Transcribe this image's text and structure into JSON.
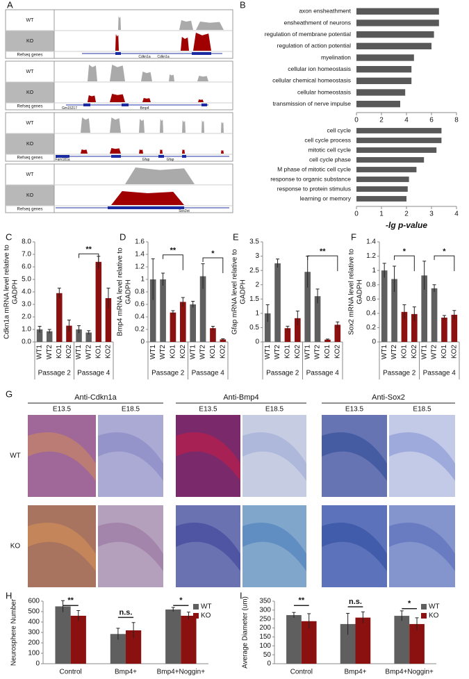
{
  "panel_labels": [
    "A",
    "B",
    "C",
    "D",
    "E",
    "F",
    "G",
    "H",
    "I"
  ],
  "tracks": [
    {
      "rows": [
        "WT",
        "KO",
        "Refseq genes"
      ],
      "genes": [
        "Cdkn1a",
        "Cdkn1a"
      ]
    },
    {
      "rows": [
        "WT",
        "KO",
        "Refseq genes"
      ],
      "genes": [
        "Gm15217",
        "Bmp4"
      ]
    },
    {
      "rows": [
        "WT",
        "KO",
        "Refseq genes"
      ],
      "genes": [
        "Fam181a",
        "Gfap",
        "Gfap"
      ]
    },
    {
      "rows": [
        "WT",
        "KO",
        "Refseq genes"
      ],
      "genes": [
        "Sox2ot"
      ]
    }
  ],
  "histology": {
    "titles": [
      "Anti-Cdkn1a",
      "Anti-Bmp4",
      "Anti-Sox2"
    ],
    "stages": [
      "E13.5",
      "E18.5"
    ],
    "rows": [
      "WT",
      "KO"
    ]
  },
  "chart_data": [
    {
      "type": "barh",
      "color": "#595959",
      "categories": [
        "axon ensheathment",
        "ensheathment of neurons",
        "regulation of membrane potential",
        "regulation of action potential",
        "myelination",
        "cellular ion homeostasis",
        "cellular chemical homeostasis",
        "cellular homeostasis",
        "transmission of nerve impulse"
      ],
      "values": [
        6.6,
        6.6,
        6.2,
        6.0,
        4.6,
        4.4,
        4.4,
        3.9,
        3.5
      ],
      "xlim": [
        0,
        8
      ],
      "xticks": [
        0,
        2,
        4,
        6,
        8
      ]
    },
    {
      "type": "barh",
      "color": "#595959",
      "xlabel": "-lg p-value",
      "categories": [
        "cell cycle",
        "cell cycle process",
        "mitotic cell cycle",
        "cell cycle phase",
        "M phase of mitotic cell cycle",
        "response to organic substance",
        "response to protein stimulus",
        "learning or memory"
      ],
      "values": [
        3.4,
        3.4,
        3.2,
        2.7,
        2.4,
        2.1,
        2.05,
        2.0
      ],
      "xlim": [
        0,
        4
      ],
      "xticks": [
        0,
        1,
        2,
        3,
        4
      ]
    },
    {
      "type": "bar",
      "ylabel": [
        "Cdkn1a mRNA level relative to",
        "GADPH"
      ],
      "categories": [
        "WT1",
        "WT2",
        "KO1",
        "KO2",
        "WT1",
        "WT2",
        "KO1",
        "KO2"
      ],
      "values": [
        1.0,
        0.85,
        3.9,
        1.3,
        1.0,
        0.75,
        6.4,
        3.5
      ],
      "errors": [
        0.25,
        0.15,
        0.4,
        0.45,
        0.3,
        0.15,
        0.45,
        0.8
      ],
      "colors": [
        "#5f5f5f",
        "#5f5f5f",
        "#8b1010",
        "#8b1010",
        "#5f5f5f",
        "#5f5f5f",
        "#8b1010",
        "#8b1010"
      ],
      "groups": [
        "Passage 2",
        "Passage 4"
      ],
      "significance": [
        "**"
      ],
      "ylim": [
        0,
        8
      ],
      "yticks": [
        {
          "value": 0,
          "label": "0.0"
        },
        {
          "value": 1,
          "label": "1.0"
        },
        {
          "value": 2,
          "label": "2.0"
        },
        {
          "value": 3,
          "label": "3.0"
        },
        {
          "value": 4,
          "label": "4.0"
        },
        {
          "value": 5,
          "label": "5.0"
        },
        {
          "value": 6,
          "label": "6.0"
        },
        {
          "value": 7,
          "label": "7.0"
        },
        {
          "value": 8,
          "label": "8.0"
        }
      ]
    },
    {
      "type": "bar",
      "ylabel": [
        "Bmp4 mRNA level relative to",
        "GADPH"
      ],
      "categories": [
        "WT1",
        "WT2",
        "KO1",
        "KO2",
        "WT1",
        "WT2",
        "KO1",
        "KO2"
      ],
      "values": [
        1.0,
        1.0,
        0.47,
        0.64,
        0.6,
        1.05,
        0.22,
        0.04
      ],
      "errors": [
        0.33,
        0.1,
        0.03,
        0.07,
        0.05,
        0.2,
        0.03,
        0.01
      ],
      "colors": [
        "#5f5f5f",
        "#5f5f5f",
        "#8b1010",
        "#8b1010",
        "#5f5f5f",
        "#5f5f5f",
        "#8b1010",
        "#8b1010"
      ],
      "groups": [
        "Passage 2",
        "Passage 4"
      ],
      "significance": [
        "**",
        "*"
      ],
      "ylim": [
        0,
        1.6
      ],
      "yticks": [
        0,
        0.2,
        0.4,
        0.6,
        0.8,
        1,
        1.2,
        1.4,
        1.6
      ]
    },
    {
      "type": "bar",
      "ylabel": [
        "Gfap mRNA level relative to",
        "GADPH"
      ],
      "categories": [
        "WT1",
        "WT2",
        "KO1",
        "KO2",
        "WT1",
        "WT2",
        "KO1",
        "KO2"
      ],
      "values": [
        1.0,
        2.75,
        0.48,
        0.83,
        2.45,
        1.6,
        0.08,
        0.6
      ],
      "errors": [
        0.3,
        0.15,
        0.07,
        0.25,
        0.55,
        0.25,
        0.02,
        0.1
      ],
      "colors": [
        "#5f5f5f",
        "#5f5f5f",
        "#8b1010",
        "#8b1010",
        "#5f5f5f",
        "#5f5f5f",
        "#8b1010",
        "#8b1010"
      ],
      "groups": [
        "Passage 2",
        "Passage 4"
      ],
      "significance": [
        "**"
      ],
      "ylim": [
        0,
        3.5
      ],
      "yticks": [
        0,
        0.5,
        1,
        1.5,
        2,
        2.5,
        3,
        3.5
      ]
    },
    {
      "type": "bar",
      "ylabel": [
        "Sox2 mRNA level relative to",
        "GADPH"
      ],
      "categories": [
        "WT1",
        "WT2",
        "KO1",
        "KO2",
        "WT1",
        "WT2",
        "KO1",
        "KO2"
      ],
      "values": [
        1.0,
        0.88,
        0.42,
        0.39,
        0.93,
        0.75,
        0.34,
        0.38
      ],
      "errors": [
        0.1,
        0.18,
        0.1,
        0.1,
        0.2,
        0.05,
        0.03,
        0.06
      ],
      "colors": [
        "#5f5f5f",
        "#5f5f5f",
        "#8b1010",
        "#8b1010",
        "#5f5f5f",
        "#5f5f5f",
        "#8b1010",
        "#8b1010"
      ],
      "groups": [
        "Passage 2",
        "Passage 4"
      ],
      "significance": [
        "*",
        "*"
      ],
      "ylim": [
        0,
        1.4
      ],
      "yticks": [
        0,
        0.2,
        0.4,
        0.6,
        0.8,
        1,
        1.2,
        1.4
      ]
    },
    {
      "type": "grouped_bar",
      "ylabel": "Neurosphere Number",
      "categories": [
        "Control",
        "Bmp4+",
        "Bmp4+Noggin+"
      ],
      "series": [
        {
          "name": "WT",
          "color": "#5f5f5f",
          "values": [
            550,
            285,
            520
          ],
          "errors": [
            55,
            55,
            20
          ]
        },
        {
          "name": "KO",
          "color": "#8b1010",
          "values": [
            460,
            320,
            460
          ],
          "errors": [
            50,
            75,
            35
          ]
        }
      ],
      "significance": [
        "**",
        "n.s.",
        "*"
      ],
      "legend": "upper right",
      "ylim": [
        0,
        600
      ],
      "yticks": [
        0,
        100,
        200,
        300,
        400,
        500,
        600
      ]
    },
    {
      "type": "grouped_bar",
      "ylabel": "Average Diameter (um)",
      "categories": [
        "Control",
        "Bmp4+",
        "Bmp4+Noggin+"
      ],
      "series": [
        {
          "name": "WT",
          "color": "#5f5f5f",
          "values": [
            272,
            222,
            268
          ],
          "errors": [
            15,
            60,
            28
          ]
        },
        {
          "name": "KO",
          "color": "#8b1010",
          "values": [
            238,
            258,
            222
          ],
          "errors": [
            42,
            32,
            35
          ]
        }
      ],
      "significance": [
        "**",
        "n.s.",
        "*"
      ],
      "legend": "upper right",
      "ylim": [
        0,
        350
      ],
      "yticks": [
        0,
        50,
        100,
        150,
        200,
        250,
        300,
        350
      ]
    }
  ]
}
